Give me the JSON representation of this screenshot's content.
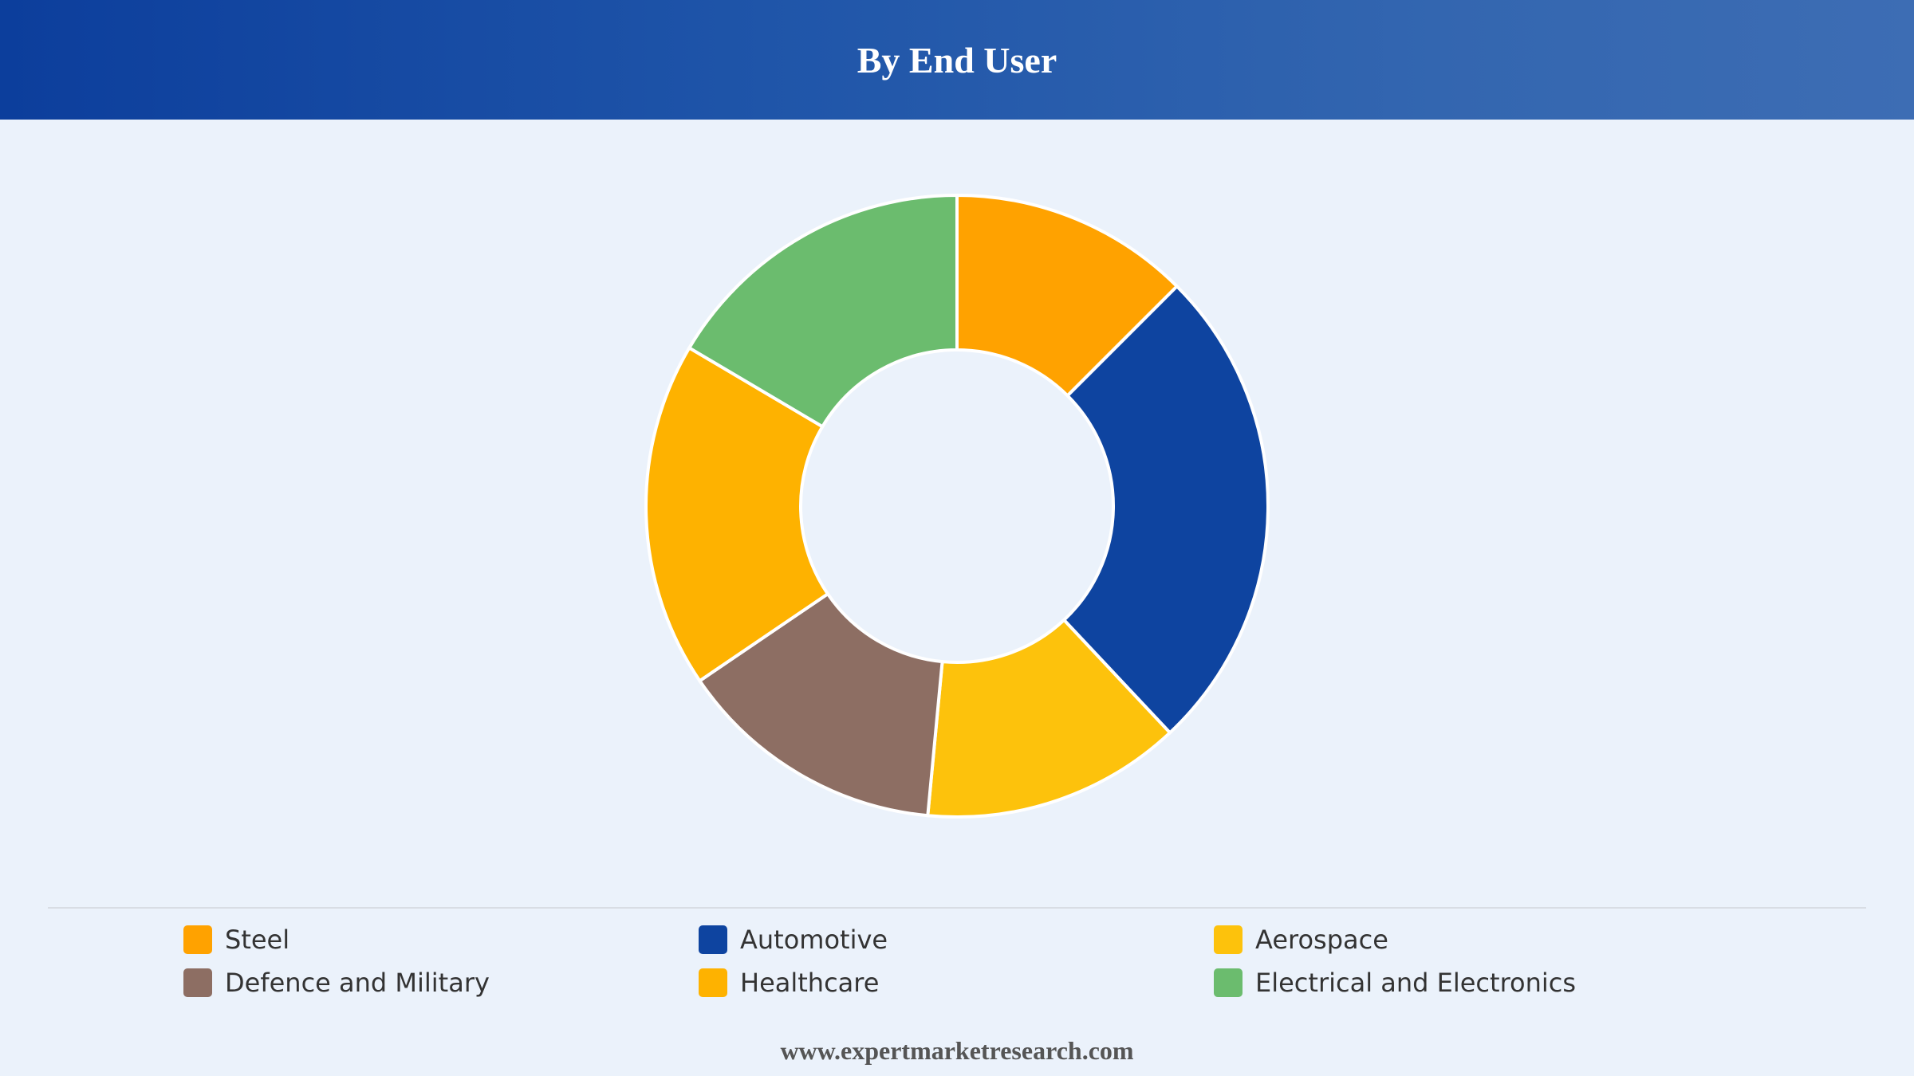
{
  "header": {
    "title": "By End User"
  },
  "chart_data": {
    "type": "pie",
    "variant": "donut",
    "categories": [
      "Steel",
      "Automotive",
      "Aerospace",
      "Defence and Military",
      "Healthcare",
      "Electrical and Electronics"
    ],
    "values": [
      12.5,
      25.5,
      13.5,
      14,
      18,
      16.5
    ],
    "unit": "%",
    "colors": [
      "#ffa200",
      "#0e44a0",
      "#fdc20c",
      "#8d6e63",
      "#feb200",
      "#6bbc6e"
    ],
    "legend_position": "bottom",
    "start": "top",
    "direction": "clockwise"
  },
  "footer": {
    "text": "www.expertmarketresearch.com"
  }
}
